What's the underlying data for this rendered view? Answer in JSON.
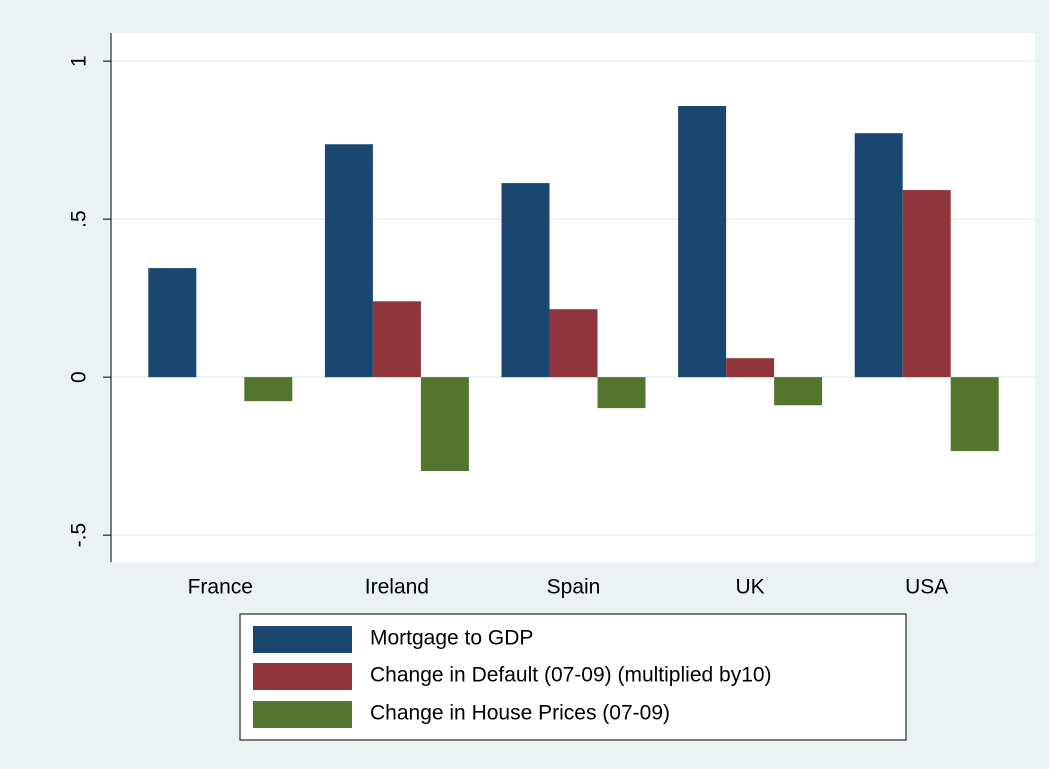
{
  "chart_data": {
    "type": "bar",
    "categories": [
      "France",
      "Ireland",
      "Spain",
      "UK",
      "USA"
    ],
    "series": [
      {
        "name": "Mortgage to GDP",
        "color": "#1a476f",
        "values": [
          0.345,
          0.737,
          0.614,
          0.858,
          0.772
        ]
      },
      {
        "name": "Change in Default (07-09) (multiplied by10)",
        "color": "#90353b",
        "values": [
          0,
          0.24,
          0.215,
          0.06,
          0.592
        ]
      },
      {
        "name": "Change in House Prices (07-09)",
        "color": "#55752f",
        "values": [
          -0.076,
          -0.297,
          -0.098,
          -0.089,
          -0.234
        ]
      }
    ],
    "ylim": [
      -0.585,
      1.089
    ],
    "yticks": [
      {
        "value": -0.5,
        "label": "-.5"
      },
      0,
      {
        "value": 0.5,
        "label": ".5"
      },
      1
    ],
    "grid": true
  }
}
